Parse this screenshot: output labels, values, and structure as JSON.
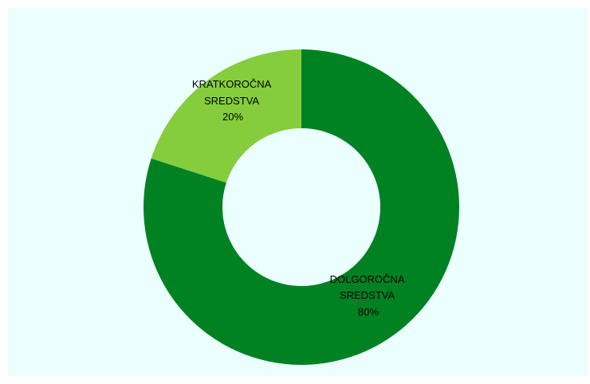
{
  "chart_data": {
    "type": "pie",
    "variant": "donut",
    "categories": [
      "DOLGOROČNA SREDSTVA",
      "KRATKOROČNA SREDSTVA"
    ],
    "values": [
      80,
      20
    ],
    "percent_labels": [
      "80%",
      "20%"
    ],
    "colors": [
      "#008223",
      "#86cd3d"
    ],
    "background": "#ebffff",
    "title": "",
    "legend": "none"
  },
  "slice_labels": [
    {
      "line1": "DOLGOROČNA",
      "line2": "SREDSTVA",
      "line3": "80%"
    },
    {
      "line1": "KRATKOROČNA",
      "line2": "SREDSTVA",
      "line3": "20%"
    }
  ]
}
